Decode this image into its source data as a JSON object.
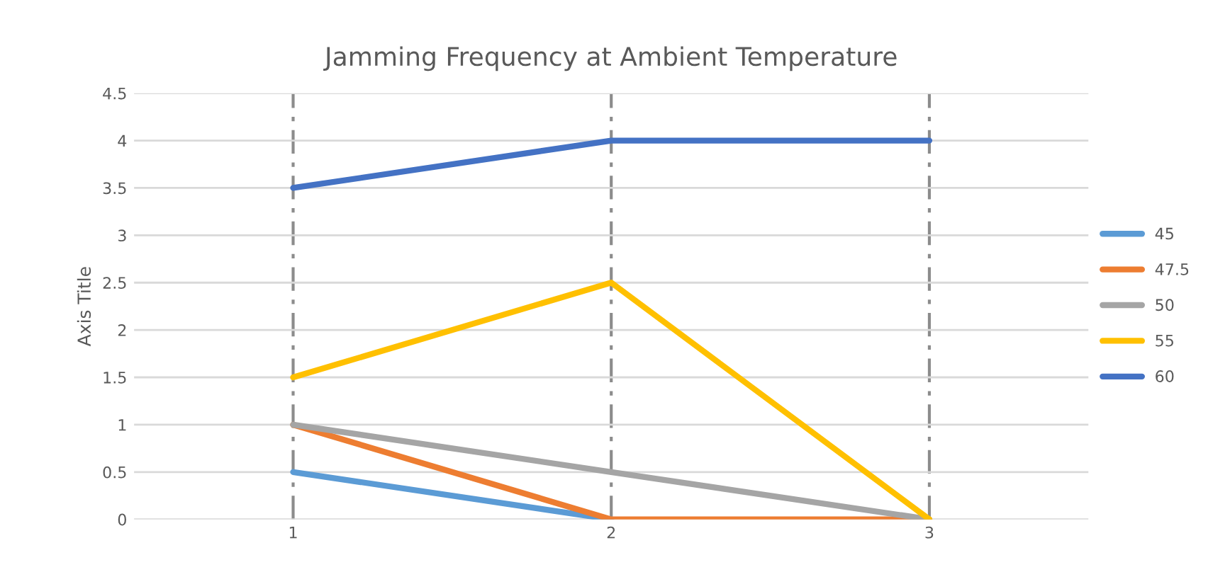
{
  "chart_data": {
    "type": "line",
    "title": "Jamming Frequency at Ambient Temperature",
    "ylabel": "Axis Title",
    "categories": [
      "1",
      "2",
      "3"
    ],
    "series": [
      {
        "name": "45",
        "color": "#5b9bd5",
        "values": [
          0.5,
          0,
          null
        ]
      },
      {
        "name": "47.5",
        "color": "#ed7d31",
        "values": [
          1,
          0,
          0
        ]
      },
      {
        "name": "50",
        "color": "#a5a5a5",
        "values": [
          1,
          0.5,
          0
        ]
      },
      {
        "name": "55",
        "color": "#ffc000",
        "values": [
          1.5,
          2.5,
          0
        ]
      },
      {
        "name": "60",
        "color": "#4472c4",
        "values": [
          3.5,
          4,
          4
        ]
      }
    ],
    "ylim": [
      0,
      4.5
    ],
    "yticks": [
      0,
      0.5,
      1,
      1.5,
      2,
      2.5,
      3,
      3.5,
      4,
      4.5
    ],
    "grid": true,
    "legend": "right",
    "marker": "none",
    "line_style": "solid"
  }
}
